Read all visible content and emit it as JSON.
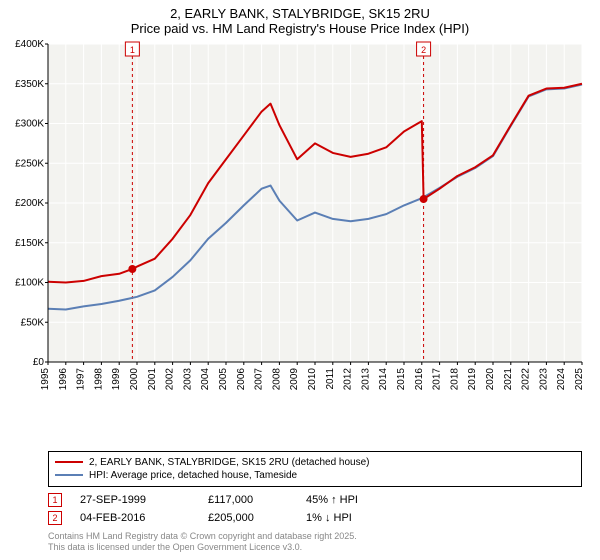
{
  "title": {
    "line1": "2, EARLY BANK, STALYBRIDGE, SK15 2RU",
    "line2": "Price paid vs. HM Land Registry's House Price Index (HPI)"
  },
  "chart": {
    "type": "line",
    "plot_bg": "#f3f3f0",
    "grid_color": "#ffffff",
    "axis_color": "#000000",
    "x_years": [
      "1995",
      "1996",
      "1997",
      "1998",
      "1999",
      "2000",
      "2001",
      "2002",
      "2003",
      "2004",
      "2005",
      "2006",
      "2007",
      "2008",
      "2009",
      "2010",
      "2011",
      "2012",
      "2013",
      "2014",
      "2015",
      "2016",
      "2017",
      "2018",
      "2019",
      "2020",
      "2021",
      "2022",
      "2023",
      "2024",
      "2025"
    ],
    "y_ticks": [
      0,
      50000,
      100000,
      150000,
      200000,
      250000,
      300000,
      350000,
      400000
    ],
    "y_tick_labels": [
      "£0",
      "£50K",
      "£100K",
      "£150K",
      "£200K",
      "£250K",
      "£300K",
      "£350K",
      "£400K"
    ],
    "ylim": [
      0,
      400000
    ],
    "series": [
      {
        "name": "property",
        "label": "2, EARLY BANK, STALYBRIDGE, SK15 2RU (detached house)",
        "color": "#cc0000",
        "width": 2,
        "points": [
          [
            1995,
            101000
          ],
          [
            1996,
            100000
          ],
          [
            1997,
            102000
          ],
          [
            1998,
            108000
          ],
          [
            1999,
            111000
          ],
          [
            1999.74,
            117000
          ],
          [
            2000,
            120000
          ],
          [
            2001,
            130000
          ],
          [
            2002,
            155000
          ],
          [
            2003,
            185000
          ],
          [
            2004,
            225000
          ],
          [
            2005,
            255000
          ],
          [
            2006,
            285000
          ],
          [
            2007,
            315000
          ],
          [
            2007.5,
            325000
          ],
          [
            2008,
            298000
          ],
          [
            2009,
            255000
          ],
          [
            2010,
            275000
          ],
          [
            2011,
            263000
          ],
          [
            2012,
            258000
          ],
          [
            2013,
            262000
          ],
          [
            2014,
            270000
          ],
          [
            2015,
            290000
          ],
          [
            2016,
            303000
          ],
          [
            2016.1,
            205000
          ],
          [
            2017,
            218000
          ],
          [
            2018,
            234000
          ],
          [
            2019,
            245000
          ],
          [
            2020,
            260000
          ],
          [
            2021,
            298000
          ],
          [
            2022,
            335000
          ],
          [
            2023,
            344000
          ],
          [
            2024,
            345000
          ],
          [
            2025,
            350000
          ]
        ]
      },
      {
        "name": "hpi",
        "label": "HPI: Average price, detached house, Tameside",
        "color": "#5b7fb5",
        "width": 2,
        "points": [
          [
            1995,
            67000
          ],
          [
            1996,
            66000
          ],
          [
            1997,
            70000
          ],
          [
            1998,
            73000
          ],
          [
            1999,
            77000
          ],
          [
            2000,
            82000
          ],
          [
            2001,
            90000
          ],
          [
            2002,
            107000
          ],
          [
            2003,
            128000
          ],
          [
            2004,
            155000
          ],
          [
            2005,
            175000
          ],
          [
            2006,
            197000
          ],
          [
            2007,
            218000
          ],
          [
            2007.5,
            222000
          ],
          [
            2008,
            203000
          ],
          [
            2009,
            178000
          ],
          [
            2010,
            188000
          ],
          [
            2011,
            180000
          ],
          [
            2012,
            177000
          ],
          [
            2013,
            180000
          ],
          [
            2014,
            186000
          ],
          [
            2015,
            197000
          ],
          [
            2016,
            206000
          ],
          [
            2017,
            219000
          ],
          [
            2018,
            233000
          ],
          [
            2019,
            244000
          ],
          [
            2020,
            259000
          ],
          [
            2021,
            297000
          ],
          [
            2022,
            334000
          ],
          [
            2023,
            343000
          ],
          [
            2024,
            344000
          ],
          [
            2025,
            349000
          ]
        ]
      }
    ],
    "sale_markers": [
      {
        "n": "1",
        "x": 1999.74,
        "y": 117000,
        "color": "#cc0000"
      },
      {
        "n": "2",
        "x": 2016.1,
        "y": 205000,
        "color": "#cc0000"
      }
    ],
    "label_fontsize": 10
  },
  "legend": {
    "s1": "2, EARLY BANK, STALYBRIDGE, SK15 2RU (detached house)",
    "s2": "HPI: Average price, detached house, Tameside"
  },
  "sales": [
    {
      "n": "1",
      "date": "27-SEP-1999",
      "price": "£117,000",
      "pct": "45% ↑ HPI"
    },
    {
      "n": "2",
      "date": "04-FEB-2016",
      "price": "£205,000",
      "pct": "1% ↓ HPI"
    }
  ],
  "copyright": {
    "l1": "Contains HM Land Registry data © Crown copyright and database right 2025.",
    "l2": "This data is licensed under the Open Government Licence v3.0."
  },
  "colors": {
    "property": "#cc0000",
    "hpi": "#5b7fb5",
    "marker_border": "#cc0000"
  }
}
